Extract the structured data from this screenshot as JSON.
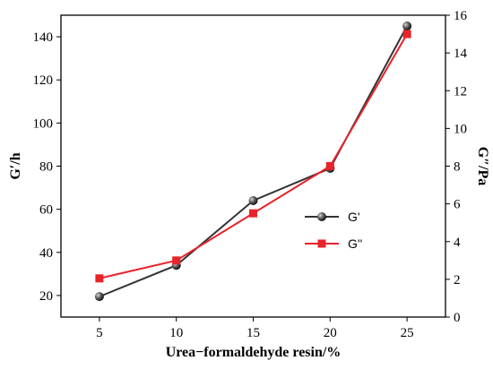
{
  "chart_data": {
    "type": "line",
    "x": [
      5,
      10,
      15,
      20,
      25
    ],
    "xlabel": "Urea−formaldehyde resin/%",
    "xlim": [
      2.5,
      27.5
    ],
    "xticks": [
      "5",
      "10",
      "15",
      "20",
      "25"
    ],
    "ylabel": "G′/h",
    "ylim": [
      10,
      150
    ],
    "yticks": [
      "20",
      "40",
      "60",
      "80",
      "100",
      "120",
      "140"
    ],
    "y2label": "G″/Pa",
    "y2lim": [
      0,
      16
    ],
    "y2ticks": [
      "0",
      "2",
      "4",
      "6",
      "8",
      "10",
      "12",
      "14",
      "16"
    ],
    "grid": false,
    "legend_position": "right",
    "series": [
      {
        "name": "G'",
        "axis": "left",
        "values": [
          19.5,
          34,
          64,
          79,
          145
        ],
        "color": "#333333",
        "marker": "sphere"
      },
      {
        "name": "G''",
        "axis": "right",
        "values": [
          2.05,
          3.0,
          5.5,
          8.0,
          15.0
        ],
        "color": "#e8232a",
        "marker": "square"
      }
    ]
  }
}
